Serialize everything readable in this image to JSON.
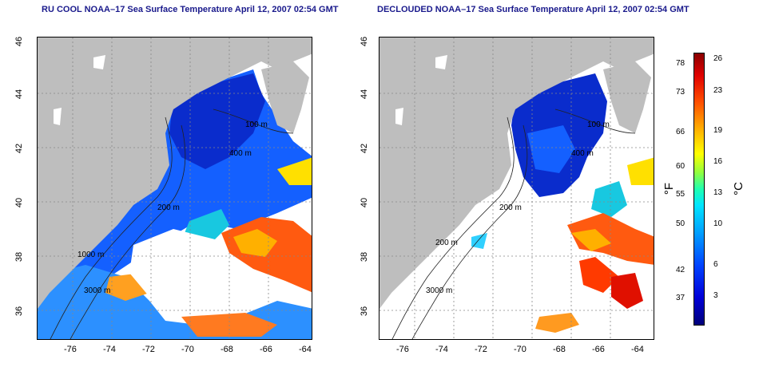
{
  "titles": {
    "left": "RU COOL NOAA–17 Sea Surface Temperature April 12, 2007 02:54 GMT",
    "right": "DECLOUDED NOAA–17 Sea Surface Temperature April 12, 2007 02:54 GMT"
  },
  "x_ticks": [
    "-76",
    "-74",
    "-72",
    "-70",
    "-68",
    "-66",
    "-64"
  ],
  "y_ticks": [
    "46",
    "44",
    "42",
    "40",
    "38",
    "36"
  ],
  "contour_labels": {
    "left": [
      "100 m",
      "400 m",
      "200 m",
      "1000 m",
      "3000 m"
    ],
    "right": [
      "100 m",
      "400 m",
      "200 m",
      "200 m",
      "3000 m"
    ]
  },
  "colorbar": {
    "fahrenheit_ticks": [
      "78",
      "73",
      "66",
      "60",
      "55",
      "50",
      "42",
      "37"
    ],
    "celsius_ticks": [
      "26",
      "23",
      "19",
      "16",
      "13",
      "10",
      "6",
      "3"
    ],
    "unit_f": "°F",
    "unit_c": "°C"
  },
  "colors": {
    "land": "#bebebe",
    "cloud_masked": "#ffffff",
    "title": "#1a1a8c"
  }
}
